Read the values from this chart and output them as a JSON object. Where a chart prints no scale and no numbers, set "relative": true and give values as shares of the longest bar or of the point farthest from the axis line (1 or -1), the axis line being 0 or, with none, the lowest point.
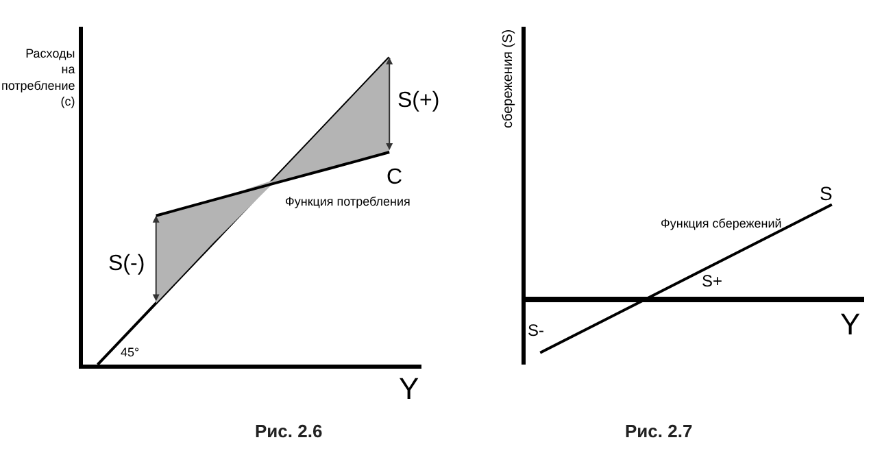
{
  "chart_data": [
    {
      "type": "line",
      "title": "Рис. 2.6",
      "xlabel": "Y",
      "ylabel": "Расходы на потребление (с)",
      "relative": true,
      "marker": "none",
      "categories": [
        null,
        null,
        null,
        null,
        null,
        null
      ],
      "series": [
        {
          "values": [
            0,
            0.2,
            0.4,
            0.6,
            0.8,
            1.0
          ],
          "color": "#000000"
        },
        {
          "values": [
            null,
            0.485,
            0.537,
            0.589,
            0.64,
            0.692
          ],
          "lower": [
            null,
            0.2,
            0.4,
            0.589,
            0.64,
            0.692
          ],
          "upper": [
            null,
            0.485,
            0.537,
            0.6,
            0.8,
            1.0
          ],
          "color": "#000000"
        }
      ],
      "annotations": [
        "S(-)",
        "S(+)",
        "C",
        "Функция потребления",
        "45°"
      ]
    },
    {
      "type": "line",
      "title": "Рис. 2.7",
      "xlabel": "Y",
      "ylabel": "сбережения (S)",
      "relative": true,
      "marker": "none",
      "categories": [
        null,
        null,
        null,
        null,
        null,
        null
      ],
      "series": [
        {
          "values": [
            -0.56,
            -0.248,
            0.064,
            0.376,
            0.688,
            1.0
          ],
          "color": "#000000"
        }
      ],
      "annotations": [
        "S-",
        "S+",
        "S",
        "Функция сбережений"
      ]
    }
  ]
}
